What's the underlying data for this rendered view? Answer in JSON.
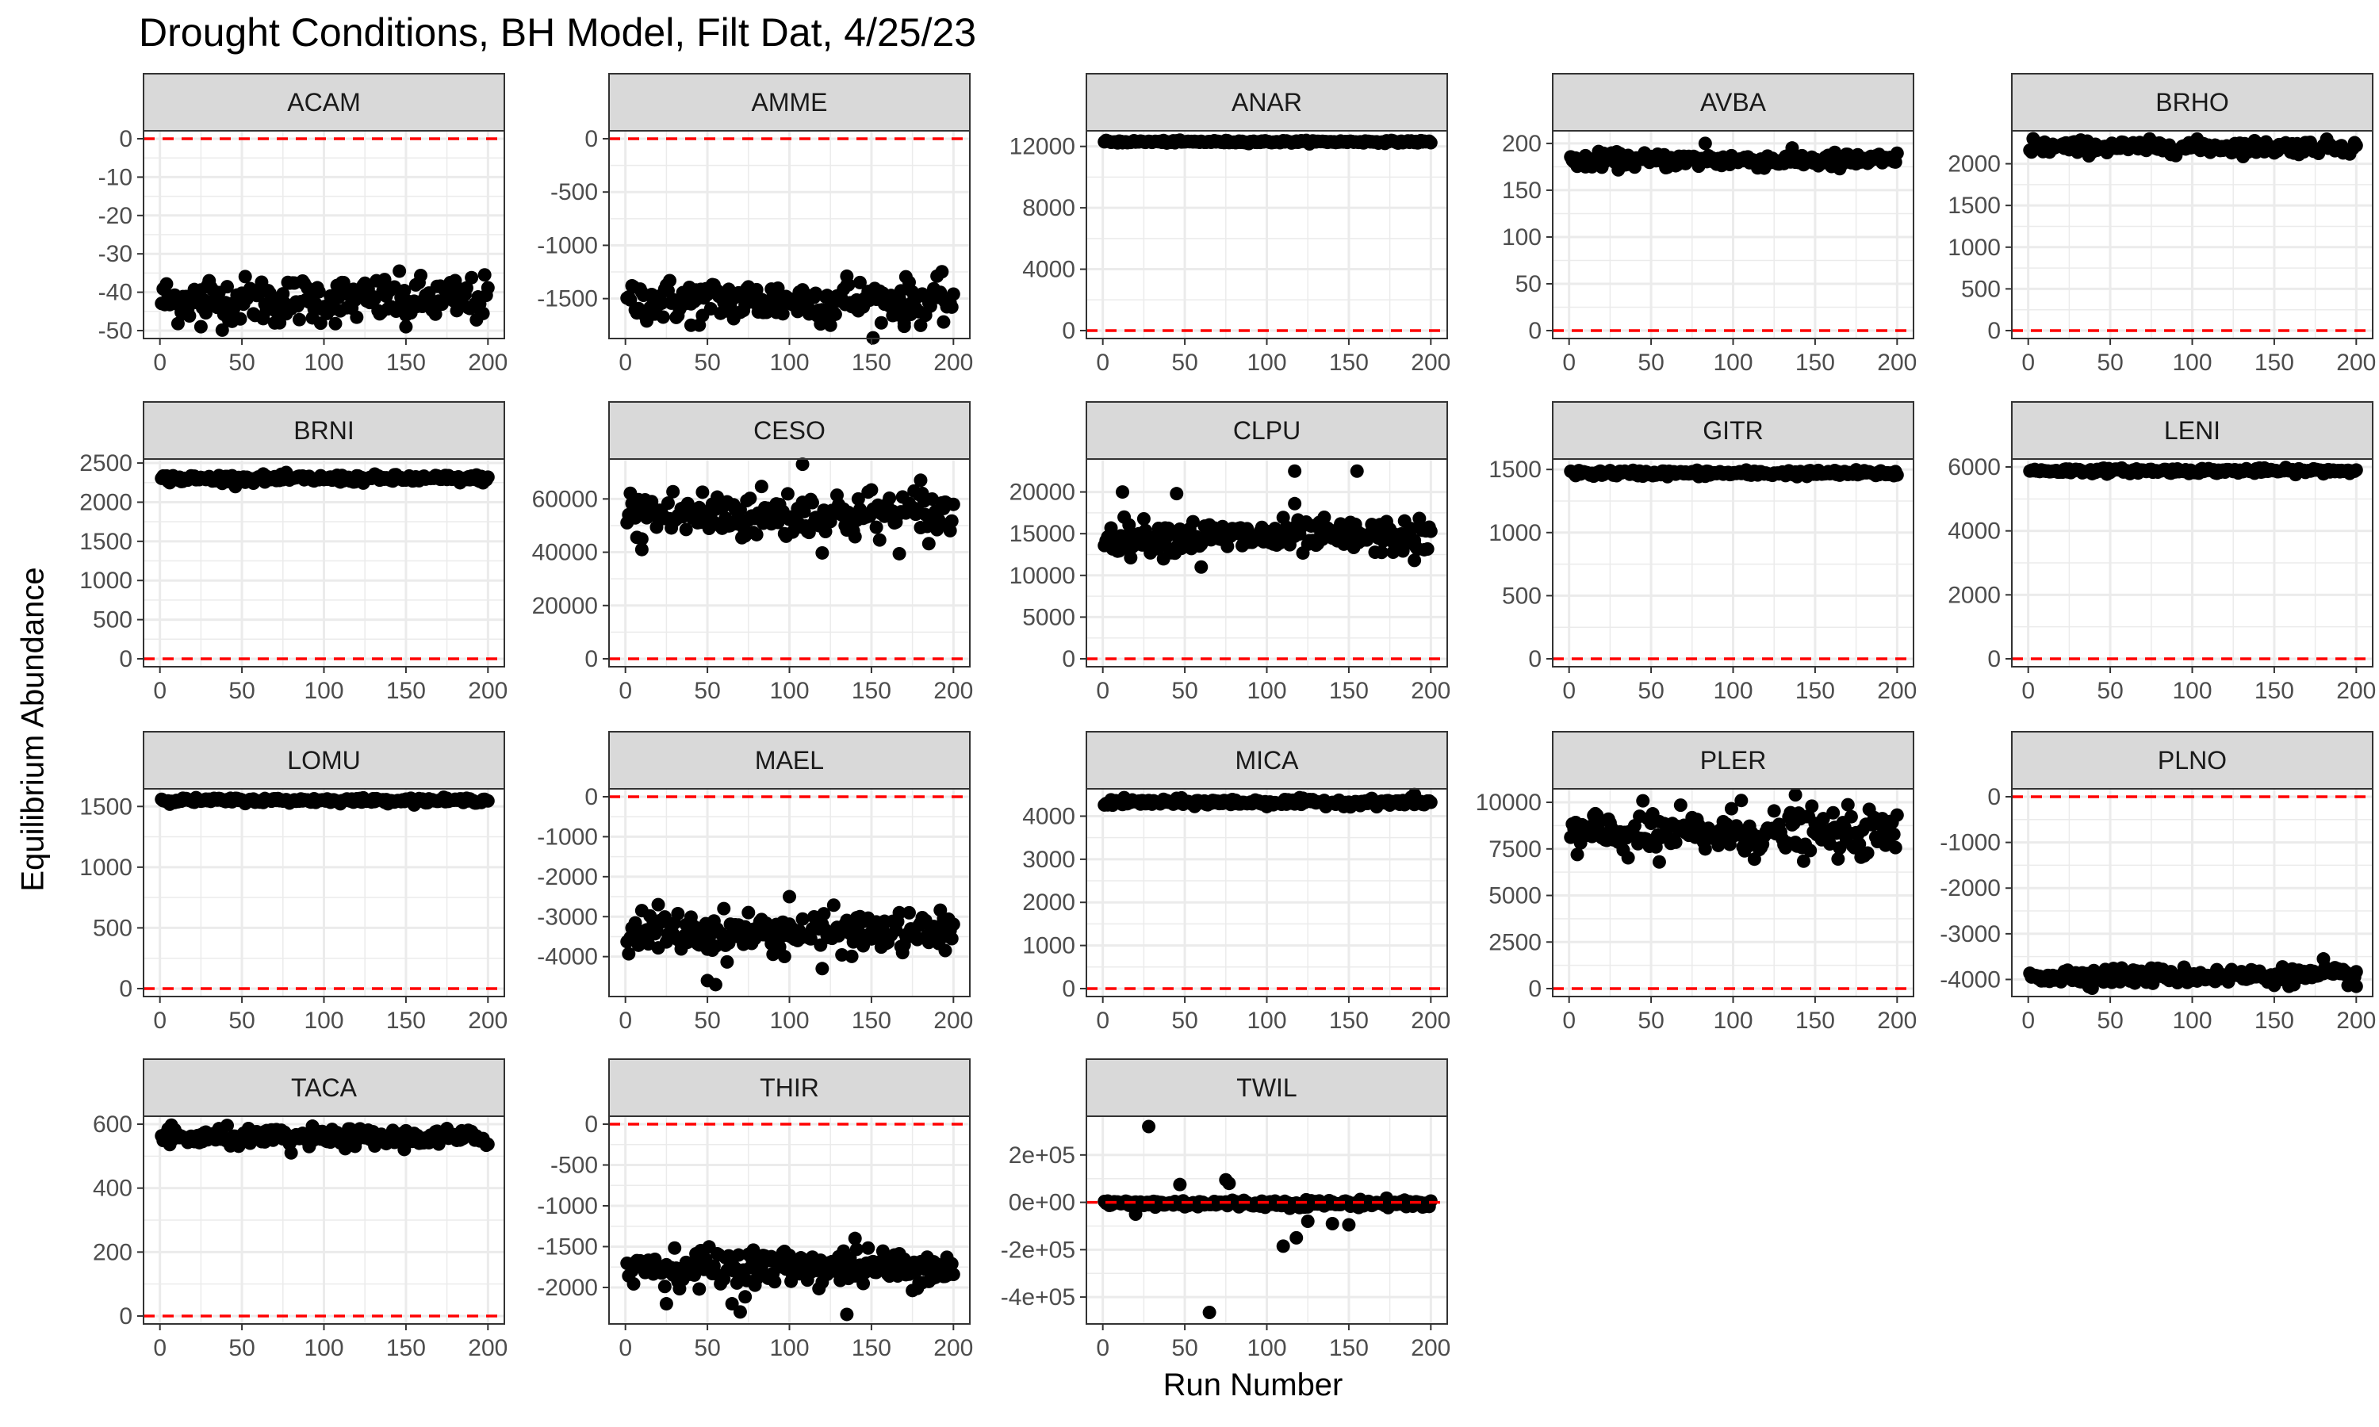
{
  "title": "Drought Conditions, BH Model, Filt Dat, 4/25/23",
  "xlabel": "Run Number",
  "ylabel": "Equilibrium Abundance",
  "colors": {
    "points": "#000000",
    "reference_line": "#ff0000",
    "strip_fill": "#d9d9d9",
    "panel_border": "#333333",
    "grid": "#ebebeb"
  },
  "chart_data": {
    "type": "scatter",
    "facet_layout": "5 columns, 4 rows",
    "grid": true,
    "x_ticks": [
      0,
      50,
      100,
      150,
      200
    ],
    "xlim": [
      0,
      200
    ],
    "reference_line": {
      "y": 0,
      "style": "dashed",
      "color": "#ff0000"
    },
    "panels": [
      {
        "name": "ACAM",
        "ylim": [
          -50,
          0
        ],
        "y_ticks": [
          0,
          -10,
          -20,
          -30,
          -40,
          -50
        ],
        "y_tick_labels": [
          "0",
          "-10",
          "-20",
          "-30",
          "-40",
          "-50"
        ],
        "center": -42,
        "spread": 3,
        "outliers": [
          [
            25,
            -49
          ],
          [
            70,
            -48
          ],
          [
            150,
            -49
          ],
          [
            30,
            -37
          ]
        ]
      },
      {
        "name": "AMME",
        "ylim": [
          -1800,
          0
        ],
        "y_ticks": [
          0,
          -500,
          -1000,
          -1500
        ],
        "y_tick_labels": [
          "0",
          "-500",
          "-1000",
          "-1500"
        ],
        "center": -1520,
        "spread": 100,
        "outliers": [
          [
            40,
            -1750
          ],
          [
            125,
            -1750
          ],
          [
            135,
            -1290
          ],
          [
            170,
            -1760
          ]
        ]
      },
      {
        "name": "ANAR",
        "ylim": [
          0,
          12500
        ],
        "y_ticks": [
          0,
          4000,
          8000,
          12000
        ],
        "y_tick_labels": [
          "0",
          "4000",
          "8000",
          "12000"
        ],
        "center": 12300,
        "spread": 40,
        "outliers": []
      },
      {
        "name": "AVBA",
        "ylim": [
          0,
          205
        ],
        "y_ticks": [
          0,
          50,
          100,
          150,
          200
        ],
        "y_tick_labels": [
          "0",
          "50",
          "100",
          "150",
          "200"
        ],
        "center": 182,
        "spread": 4,
        "outliers": [
          [
            83,
            200
          ],
          [
            10,
            175
          ],
          [
            165,
            173
          ]
        ]
      },
      {
        "name": "BRHO",
        "ylim": [
          0,
          2300
        ],
        "y_ticks": [
          0,
          500,
          1000,
          1500,
          2000
        ],
        "y_tick_labels": [
          "0",
          "500",
          "1000",
          "1500",
          "2000"
        ],
        "center": 2200,
        "spread": 40,
        "outliers": [
          [
            3,
            2300
          ],
          [
            150,
            2130
          ]
        ]
      },
      {
        "name": "BRNI",
        "ylim": [
          0,
          2450
        ],
        "y_ticks": [
          0,
          500,
          1000,
          1500,
          2000,
          2500
        ],
        "y_tick_labels": [
          "0",
          "500",
          "1000",
          "1500",
          "2000",
          "2500"
        ],
        "center": 2300,
        "spread": 25,
        "outliers": []
      },
      {
        "name": "CESO",
        "ylim": [
          0,
          72000
        ],
        "y_ticks": [
          0,
          20000,
          40000,
          60000
        ],
        "y_tick_labels": [
          "0",
          "20000",
          "40000",
          "60000"
        ],
        "center": 54000,
        "spread": 5000,
        "outliers": [
          [
            108,
            73000
          ],
          [
            10,
            41000
          ],
          [
            180,
            67000
          ]
        ]
      },
      {
        "name": "CLPU",
        "ylim": [
          0,
          23000
        ],
        "y_ticks": [
          0,
          5000,
          10000,
          15000,
          20000
        ],
        "y_tick_labels": [
          "0",
          "5000",
          "10000",
          "15000",
          "20000"
        ],
        "center": 14600,
        "spread": 1000,
        "outliers": [
          [
            12,
            20000
          ],
          [
            45,
            19800
          ],
          [
            117,
            22500
          ],
          [
            155,
            22500
          ],
          [
            117,
            18600
          ],
          [
            60,
            11000
          ],
          [
            190,
            11800
          ]
        ]
      },
      {
        "name": "GITR",
        "ylim": [
          0,
          1520
        ],
        "y_ticks": [
          0,
          500,
          1000,
          1500
        ],
        "y_tick_labels": [
          "0",
          "500",
          "1000",
          "1500"
        ],
        "center": 1470,
        "spread": 12,
        "outliers": []
      },
      {
        "name": "LENI",
        "ylim": [
          0,
          6000
        ],
        "y_ticks": [
          0,
          2000,
          4000,
          6000
        ],
        "y_tick_labels": [
          "0",
          "2000",
          "4000",
          "6000"
        ],
        "center": 5880,
        "spread": 40,
        "outliers": []
      },
      {
        "name": "LOMU",
        "ylim": [
          0,
          1580
        ],
        "y_ticks": [
          0,
          500,
          1000,
          1500
        ],
        "y_tick_labels": [
          "0",
          "500",
          "1000",
          "1500"
        ],
        "center": 1550,
        "spread": 10,
        "outliers": []
      },
      {
        "name": "MAEL",
        "ylim": [
          -4800,
          0
        ],
        "y_ticks": [
          0,
          -1000,
          -2000,
          -3000,
          -4000
        ],
        "y_tick_labels": [
          "0",
          "-1000",
          "-2000",
          "-3000",
          "-4000"
        ],
        "center": -3400,
        "spread": 250,
        "outliers": [
          [
            50,
            -4600
          ],
          [
            55,
            -4700
          ],
          [
            100,
            -2500
          ],
          [
            120,
            -4300
          ],
          [
            20,
            -2700
          ]
        ]
      },
      {
        "name": "MICA",
        "ylim": [
          0,
          4450
        ],
        "y_ticks": [
          0,
          1000,
          2000,
          3000,
          4000
        ],
        "y_tick_labels": [
          "0",
          "1000",
          "2000",
          "3000",
          "4000"
        ],
        "center": 4320,
        "spread": 40,
        "outliers": [
          [
            190,
            4500
          ]
        ]
      },
      {
        "name": "PLER",
        "ylim": [
          0,
          10300
        ],
        "y_ticks": [
          0,
          2500,
          5000,
          7500,
          10000
        ],
        "y_tick_labels": [
          "0",
          "2500",
          "5000",
          "7500",
          "10000"
        ],
        "center": 8300,
        "spread": 600,
        "outliers": [
          [
            138,
            10400
          ],
          [
            105,
            10100
          ],
          [
            55,
            6800
          ],
          [
            5,
            7200
          ]
        ]
      },
      {
        "name": "PLNO",
        "ylim": [
          -4200,
          0
        ],
        "y_ticks": [
          0,
          -1000,
          -2000,
          -3000,
          -4000
        ],
        "y_tick_labels": [
          "0",
          "-1000",
          "-2000",
          "-3000",
          "-4000"
        ],
        "center": -3920,
        "spread": 90,
        "outliers": [
          [
            180,
            -3550
          ],
          [
            200,
            -4150
          ]
        ]
      },
      {
        "name": "TACA",
        "ylim": [
          0,
          600
        ],
        "y_ticks": [
          0,
          200,
          400,
          600
        ],
        "y_tick_labels": [
          "0",
          "200",
          "400",
          "600"
        ],
        "center": 557,
        "spread": 14,
        "outliers": [
          [
            80,
            510
          ],
          [
            5,
            585
          ]
        ]
      },
      {
        "name": "THIR",
        "ylim": [
          -2350,
          0
        ],
        "y_ticks": [
          0,
          -500,
          -1000,
          -1500,
          -2000
        ],
        "y_tick_labels": [
          "0",
          "-500",
          "-1000",
          "-1500",
          "-2000"
        ],
        "center": -1750,
        "spread": 110,
        "outliers": [
          [
            70,
            -2300
          ],
          [
            135,
            -2330
          ],
          [
            25,
            -2200
          ],
          [
            140,
            -1400
          ],
          [
            65,
            -2200
          ]
        ]
      },
      {
        "name": "TWIL",
        "ylim": [
          -480000,
          330000
        ],
        "y_ticks": [
          200000,
          0,
          -200000,
          -400000
        ],
        "y_tick_labels": [
          "2e+05",
          "0e+00",
          "-2e+05",
          "-4e+05"
        ],
        "center": -5000,
        "spread": 8000,
        "outliers": [
          [
            28,
            320000
          ],
          [
            47,
            75000
          ],
          [
            75,
            95000
          ],
          [
            77,
            80000
          ],
          [
            65,
            -465000
          ],
          [
            110,
            -185000
          ],
          [
            118,
            -150000
          ],
          [
            125,
            -80000
          ],
          [
            140,
            -90000
          ],
          [
            150,
            -95000
          ],
          [
            20,
            -50000
          ]
        ]
      }
    ]
  }
}
